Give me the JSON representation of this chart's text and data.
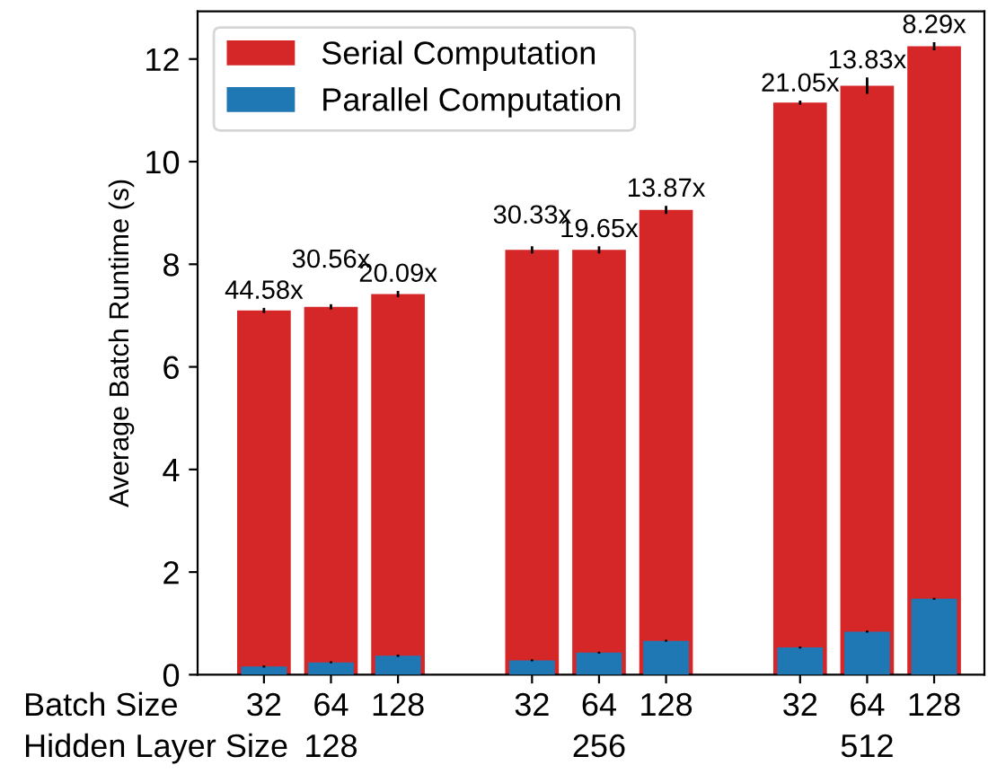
{
  "chart_data": {
    "type": "bar",
    "ylabel": "Average Batch Runtime (s)",
    "xlabel": "Batch Size",
    "categories": [
      "32",
      "64",
      "128",
      null,
      "32",
      "64",
      "128",
      null,
      "32",
      "64",
      "128"
    ],
    "annotations": [
      "Hidden Layer Size",
      "128",
      "256",
      "512",
      "44.58x",
      "30.56x",
      "20.09x",
      "30.33x",
      "19.65x",
      "13.87x",
      "21.05x",
      "13.83x",
      "8.29x"
    ],
    "series": [
      {
        "name": "Serial Computation",
        "color": "#d62728",
        "values": [
          7.1,
          7.17,
          7.42,
          null,
          8.28,
          8.28,
          9.06,
          null,
          11.15,
          11.48,
          12.25
        ],
        "errors": [
          0.05,
          0.05,
          0.06,
          null,
          0.07,
          0.07,
          0.08,
          null,
          0.04,
          0.16,
          0.08
        ]
      },
      {
        "name": "Parallel Computation",
        "color": "#1f77b4",
        "values": [
          0.16,
          0.24,
          0.37,
          null,
          0.28,
          0.43,
          0.66,
          null,
          0.53,
          0.84,
          1.48
        ],
        "errors": [
          0.02,
          0.02,
          0.02,
          null,
          0.02,
          0.02,
          0.02,
          null,
          0.02,
          0.02,
          0.02
        ]
      }
    ],
    "ylim": [
      0,
      12.93
    ],
    "yticks": [
      0,
      2,
      4,
      6,
      8,
      10,
      12
    ],
    "legend": "top left"
  }
}
